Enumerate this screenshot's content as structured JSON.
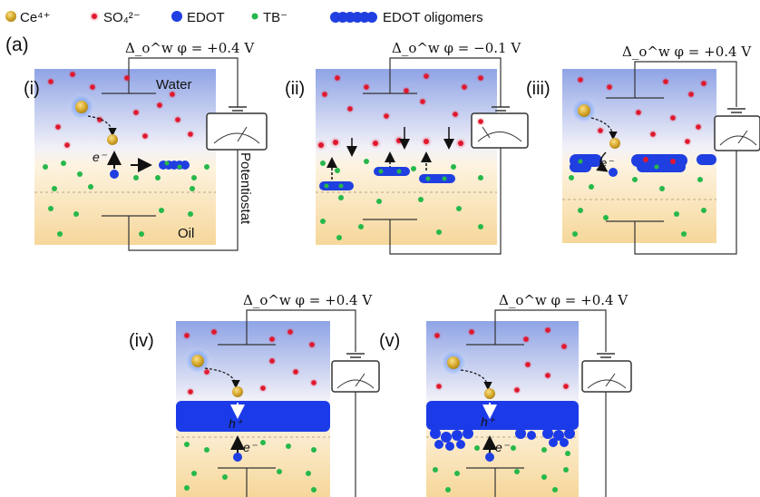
{
  "legend": {
    "ce_label": "Ce⁴⁺",
    "so4_label": "SO₄²⁻",
    "edot_label": "EDOT",
    "tb_label": "TB⁻",
    "oligomer_label": "EDOT oligomers"
  },
  "figure_label": "(a)",
  "panels": [
    {
      "id": "i",
      "label": "(i)",
      "potential": "Δ_o^w φ = +0.4 V"
    },
    {
      "id": "ii",
      "label": "(ii)",
      "potential": "Δ_o^w φ = −0.1 V"
    },
    {
      "id": "iii",
      "label": "(iii)",
      "potential": "Δ_o^w φ = +0.4 V"
    },
    {
      "id": "iv",
      "label": "(iv)",
      "potential": "Δ_o^w φ = +0.4 V"
    },
    {
      "id": "v",
      "label": "(v)",
      "potential": "Δ_o^w φ = +0.4 V"
    }
  ],
  "phase_labels": {
    "water": "Water",
    "oil": "Oil",
    "instrument": "Potentiostat"
  },
  "species_labels": {
    "electron": "e⁻",
    "hole": "h⁺"
  },
  "colors": {
    "water_top": "#8fa4e6",
    "oil_bottom": "#f6d79a",
    "ce": "#d4a62a",
    "so4": "#e0182e",
    "edot": "#1f3fe0",
    "tb": "#26b84a",
    "film": "#1c3be8"
  }
}
